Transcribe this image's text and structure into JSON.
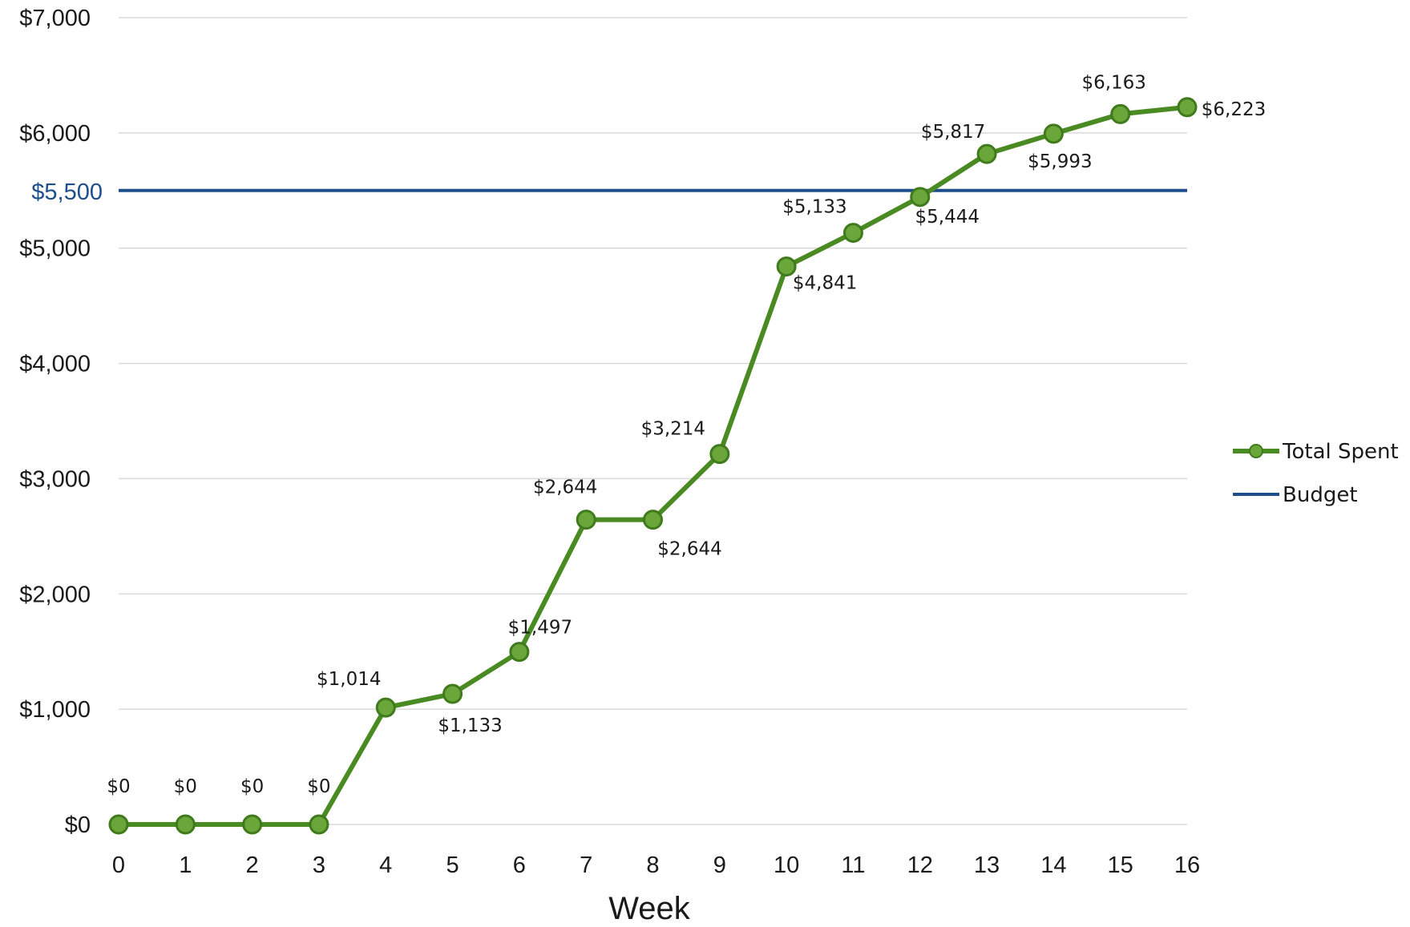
{
  "chart_data": {
    "type": "line",
    "x": [
      0,
      1,
      2,
      3,
      4,
      5,
      6,
      7,
      8,
      9,
      10,
      11,
      12,
      13,
      14,
      15,
      16
    ],
    "xlabel": "Week",
    "ylabel": "",
    "ylim": [
      0,
      7000
    ],
    "yticks": [
      0,
      1000,
      2000,
      3000,
      4000,
      5000,
      6000,
      7000
    ],
    "ytick_labels": [
      "$0",
      "$1,000",
      "$2,000",
      "$3,000",
      "$4,000",
      "$5,000",
      "$6,000",
      "$7,000"
    ],
    "grid": true,
    "legend_position": "right",
    "series": [
      {
        "name": "Total Spent",
        "color": "#4a8a22",
        "values": [
          0,
          0,
          0,
          0,
          1014,
          1133,
          1497,
          2644,
          2644,
          3214,
          4841,
          5133,
          5444,
          5817,
          5993,
          6163,
          6223
        ],
        "labels": [
          "$0",
          "$0",
          "$0",
          "$0",
          "$1,014",
          "$1,133",
          "$1,497",
          "$2,644",
          "$2,644",
          "$3,214",
          "$4,841",
          "$5,133",
          "$5,444",
          "$5,817",
          "$5,993",
          "$6,163",
          "$6,223"
        ]
      },
      {
        "name": "Budget",
        "color": "#1f4e8c",
        "value": 5500,
        "tick_label": "$5,500"
      }
    ]
  }
}
